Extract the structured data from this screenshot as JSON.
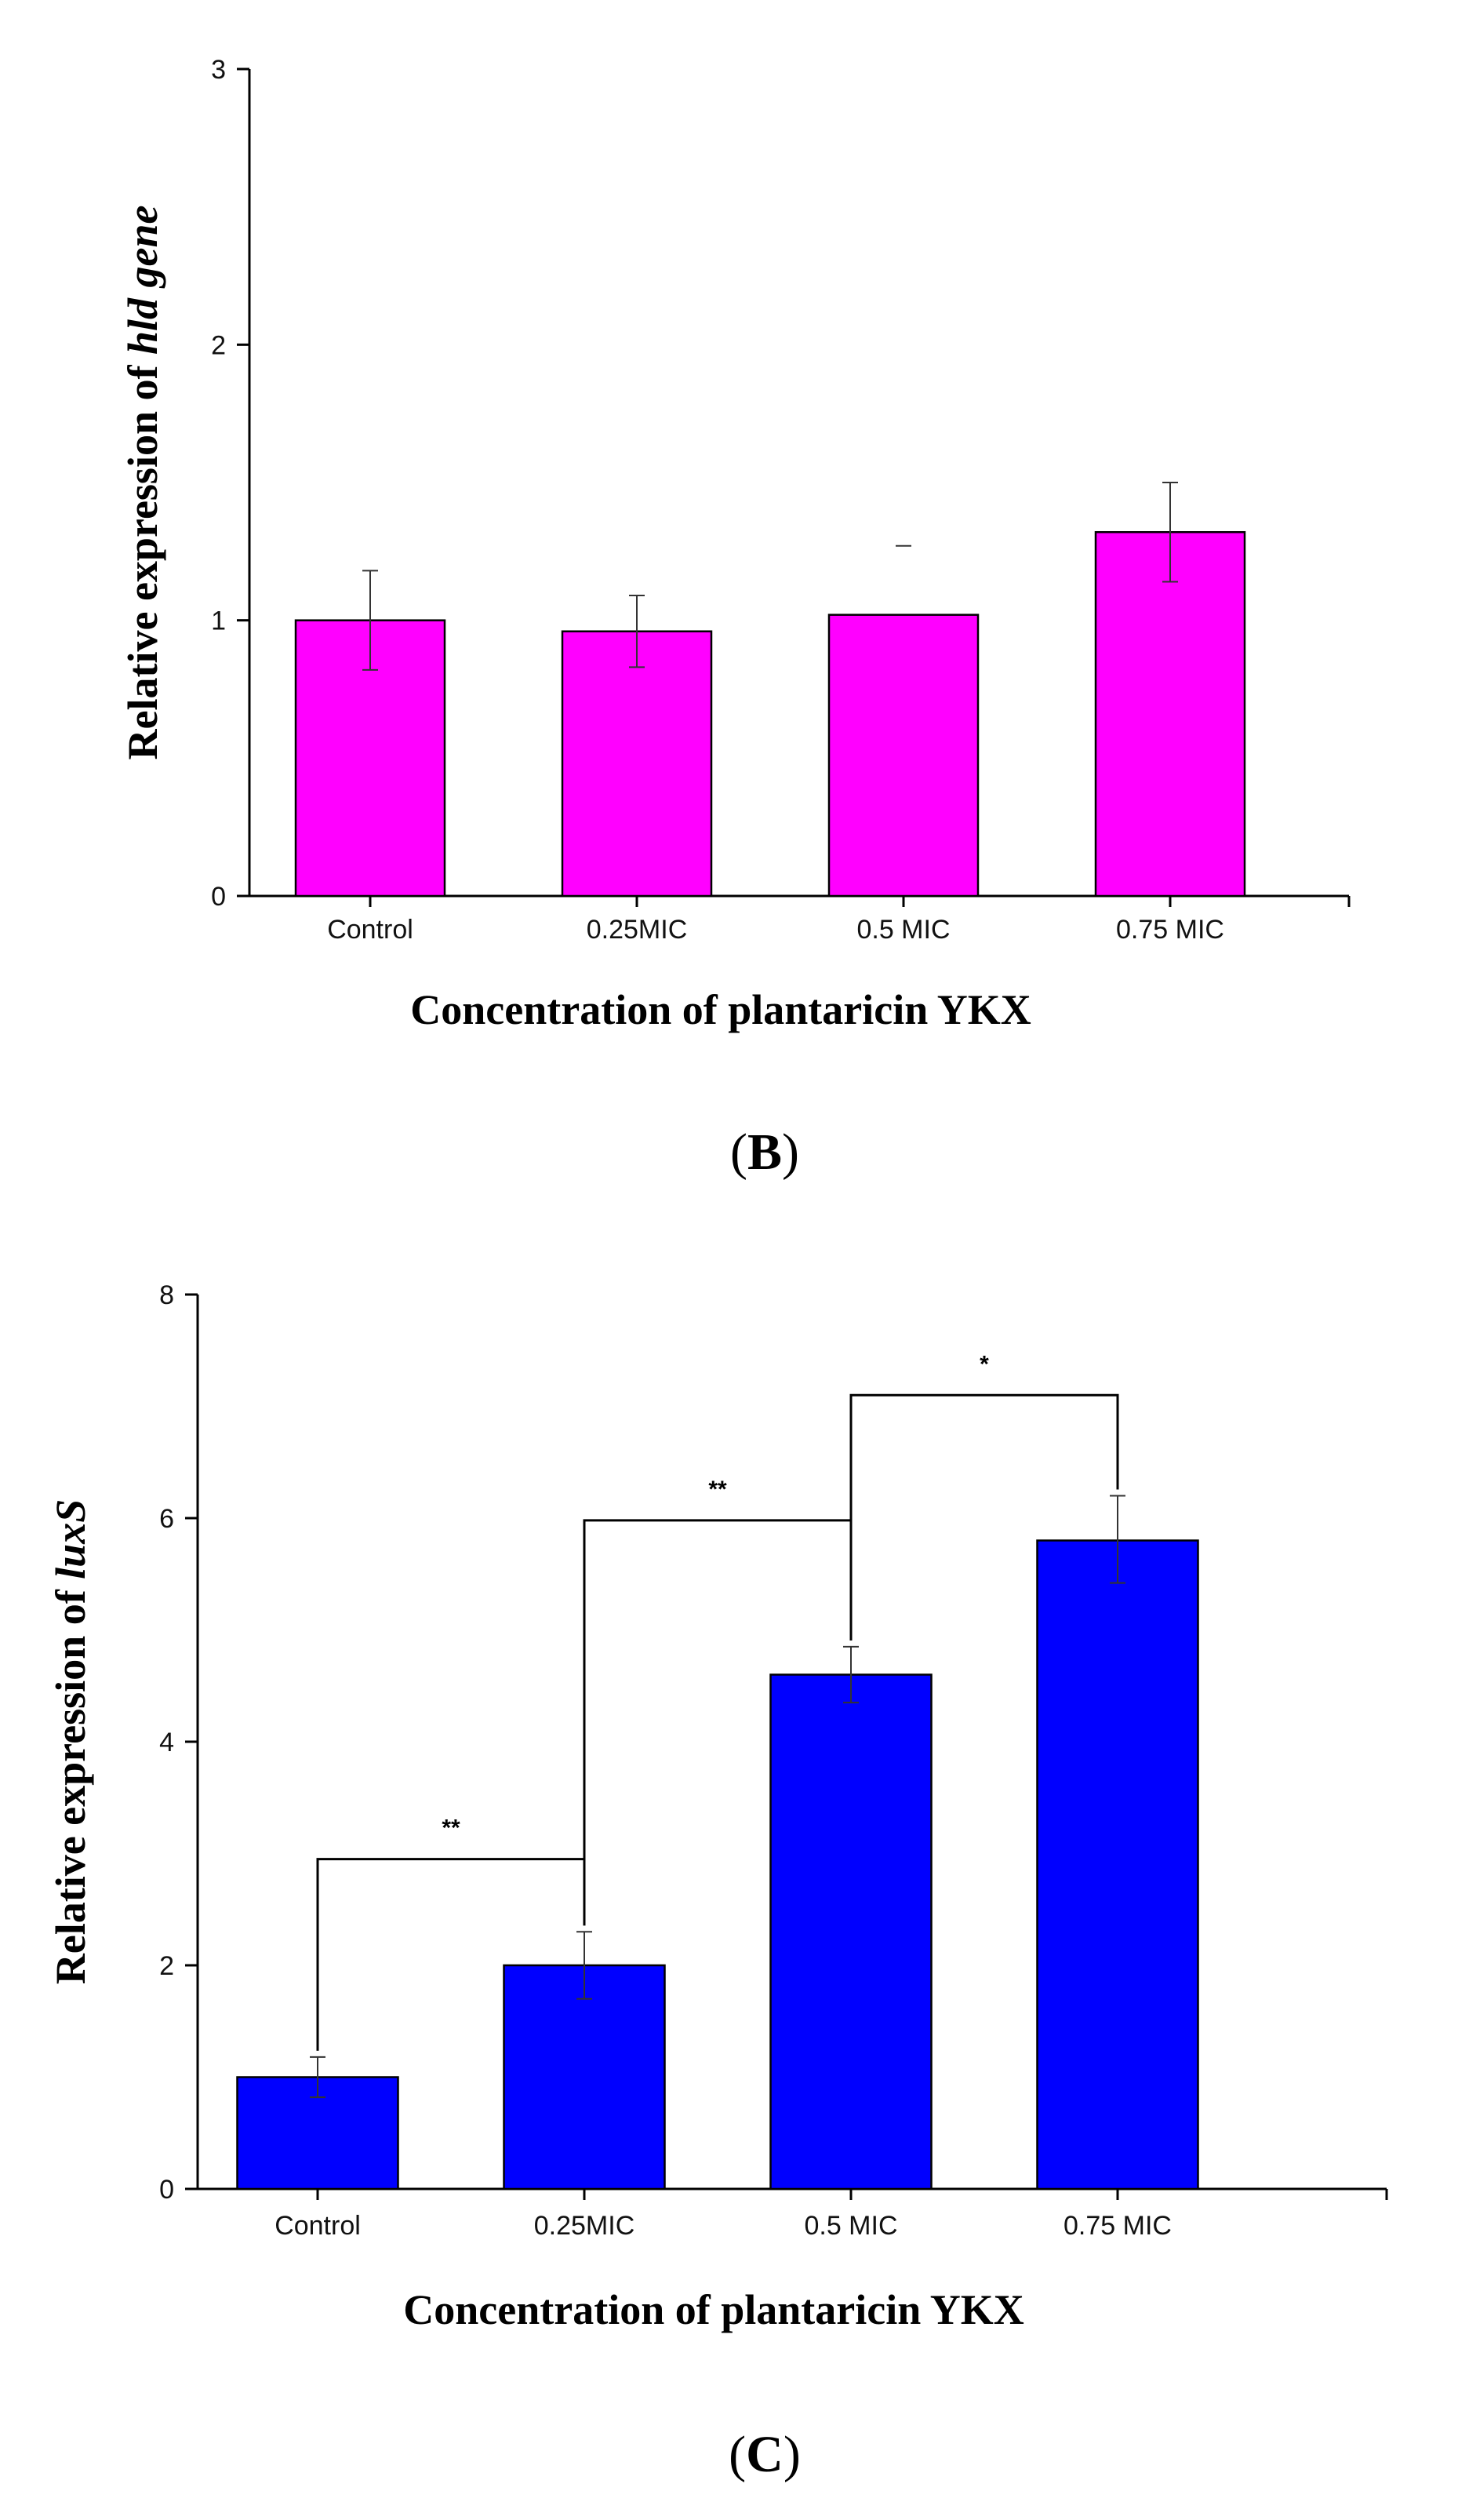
{
  "chart_data": [
    {
      "type": "bar",
      "panel_label": "B",
      "categories": [
        "Control",
        "0.25MIC",
        "0.5 MIC",
        "0.75 MIC"
      ],
      "values": [
        1.0,
        0.96,
        1.02,
        1.32
      ],
      "error_upper": [
        1.18,
        1.09,
        1.27,
        1.5
      ],
      "error_lower": [
        0.82,
        0.83,
        null,
        1.14
      ],
      "ylim": [
        0,
        3
      ],
      "yticks": [
        "0",
        "1",
        "2",
        "3"
      ],
      "xlabel": "Concentration of plantaricin YKX",
      "ylabel_prefix": "Relative expression of ",
      "ylabel_italic": "hld gene",
      "bar_color": "#ff00ff",
      "grid": false
    },
    {
      "type": "bar",
      "panel_label": "C",
      "categories": [
        "Control",
        "0.25MIC",
        "0.5 MIC",
        "0.75 MIC"
      ],
      "values": [
        1.0,
        2.0,
        4.6,
        5.8
      ],
      "error_upper": [
        1.18,
        2.3,
        4.85,
        6.2
      ],
      "error_lower": [
        0.82,
        1.7,
        4.35,
        5.42
      ],
      "ylim": [
        0,
        8
      ],
      "yticks": [
        "0",
        "2",
        "4",
        "6",
        "8"
      ],
      "xlabel": "Concentration of plantaricin YKX",
      "ylabel_prefix": "Relative expression of ",
      "ylabel_italic": "luxS",
      "bar_color": "#0000ff",
      "grid": false,
      "significance": [
        {
          "from": 0,
          "to": 1,
          "label": "**",
          "level": 2.95
        },
        {
          "from": 1,
          "to": 2,
          "label": "**",
          "level": 5.98
        },
        {
          "from": 2,
          "to": 3,
          "label": "*",
          "level": 7.1
        }
      ]
    }
  ]
}
